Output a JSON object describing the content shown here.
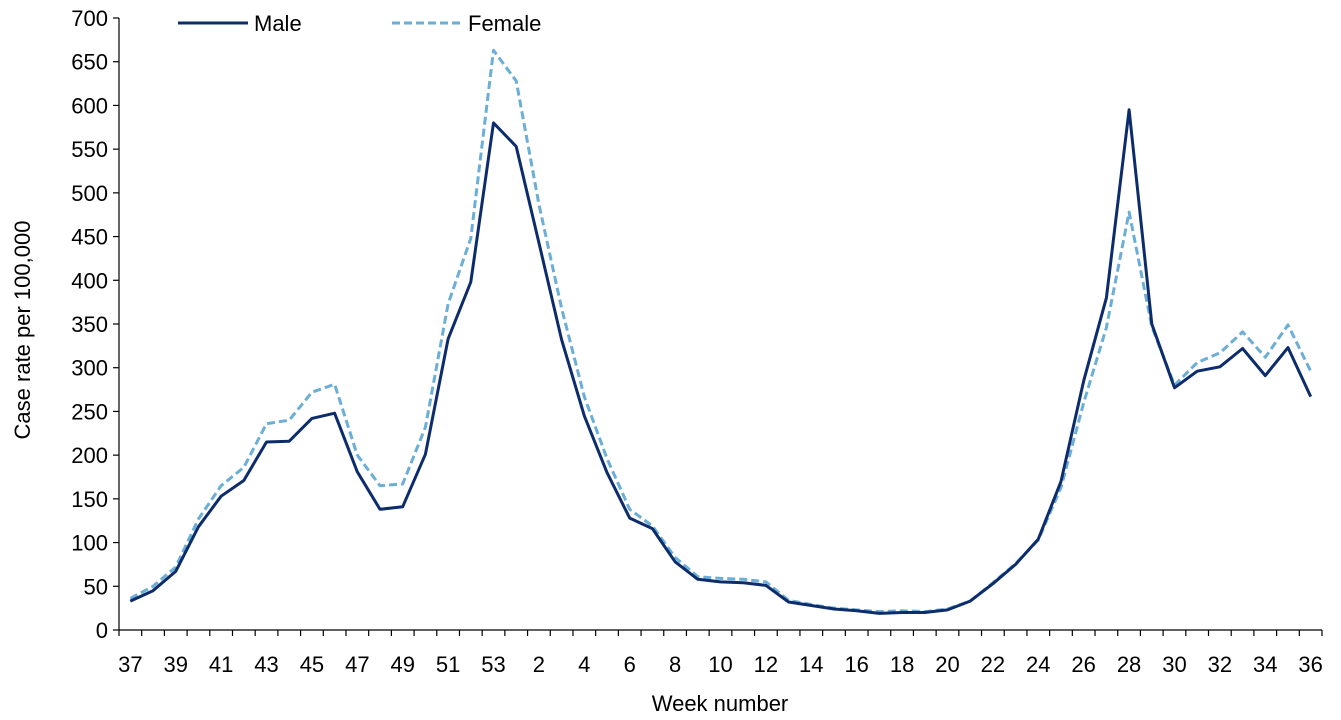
{
  "chart_data": {
    "type": "line",
    "title": "",
    "xlabel": "Week number",
    "ylabel": "Case rate per 100,000",
    "ylim": [
      0,
      700
    ],
    "yticks": [
      0,
      50,
      100,
      150,
      200,
      250,
      300,
      350,
      400,
      450,
      500,
      550,
      600,
      650,
      700
    ],
    "grid": false,
    "legend_position": "top-left",
    "categories": [
      "37",
      "38",
      "39",
      "40",
      "41",
      "42",
      "43",
      "44",
      "45",
      "46",
      "47",
      "48",
      "49",
      "50",
      "51",
      "52",
      "53",
      "1",
      "2",
      "3",
      "4",
      "5",
      "6",
      "7",
      "8",
      "9",
      "10",
      "11",
      "12",
      "13",
      "14",
      "15",
      "16",
      "17",
      "18",
      "19",
      "20",
      "21",
      "22",
      "23",
      "24",
      "25",
      "26",
      "27",
      "28",
      "29",
      "30",
      "31",
      "32",
      "33",
      "34",
      "35",
      "36"
    ],
    "x_tick_labels": [
      "37",
      "39",
      "41",
      "43",
      "45",
      "47",
      "49",
      "51",
      "53",
      "2",
      "4",
      "6",
      "8",
      "10",
      "12",
      "14",
      "16",
      "18",
      "20",
      "22",
      "24",
      "26",
      "28",
      "30",
      "32",
      "34",
      "36"
    ],
    "series": [
      {
        "name": "Male",
        "color": "#0d2c6b",
        "style": "solid",
        "values": [
          33,
          45,
          67,
          118,
          153,
          171,
          215,
          216,
          242,
          248,
          181,
          138,
          141,
          201,
          333,
          398,
          580,
          553,
          443,
          332,
          245,
          180,
          128,
          116,
          78,
          58,
          55,
          54,
          51,
          32,
          28,
          24,
          22,
          19,
          20,
          20,
          23,
          33,
          53,
          75,
          104,
          170,
          285,
          380,
          595,
          350,
          277,
          296,
          301,
          322,
          291,
          323,
          267
        ]
      },
      {
        "name": "Female",
        "color": "#6baed6",
        "style": "dashed",
        "values": [
          36,
          50,
          72,
          127,
          165,
          186,
          236,
          240,
          272,
          281,
          200,
          165,
          167,
          232,
          373,
          448,
          663,
          628,
          487,
          368,
          267,
          196,
          138,
          119,
          83,
          61,
          59,
          58,
          55,
          34,
          29,
          25,
          23,
          21,
          22,
          21,
          24,
          33,
          54,
          76,
          103,
          163,
          260,
          346,
          478,
          347,
          280,
          306,
          317,
          341,
          312,
          349,
          296
        ]
      }
    ]
  }
}
